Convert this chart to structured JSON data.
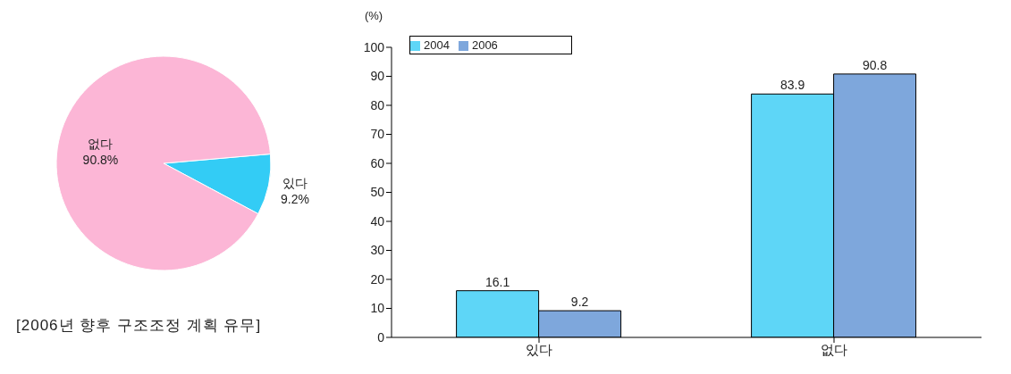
{
  "chart_data": [
    {
      "type": "pie",
      "title": "[2006년 향후 구조조정 계획 유무]",
      "categories": [
        "있다",
        "없다"
      ],
      "values": [
        9.2,
        90.8
      ],
      "colors": [
        "#33ccf5",
        "#fcb6d6"
      ],
      "value_labels": [
        "9.2%",
        "90.8%"
      ]
    },
    {
      "type": "bar",
      "ylabel": "(%)",
      "categories": [
        "있다",
        "없다"
      ],
      "series": [
        {
          "name": "2004",
          "color": "#5ed6f7",
          "values": [
            16.1,
            83.9
          ]
        },
        {
          "name": "2006",
          "color": "#7ea7dc",
          "values": [
            9.2,
            90.8
          ]
        }
      ],
      "ylim": [
        0,
        100
      ],
      "yticks": [
        0,
        10,
        20,
        30,
        40,
        50,
        60,
        70,
        80,
        90,
        100
      ],
      "data_labels": true,
      "legend": "top left"
    }
  ]
}
